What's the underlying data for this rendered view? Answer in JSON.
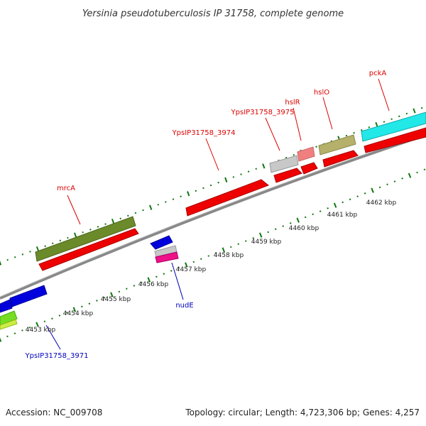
{
  "title": "Yersinia pseudotuberculosis IP 31758, complete genome",
  "footer": {
    "accession": "Accession: NC_009708",
    "summary": "Topology: circular; Length: 4,723,306 bp; Genes: 4,257"
  },
  "colors": {
    "label_forward": "#dd0000",
    "label_reverse": "#0000bb",
    "tick": "#117711",
    "backbone": "#888888"
  },
  "scale_labels": [
    "4453 kbp",
    "4454 kbp",
    "4455 kbp",
    "4456 kbp",
    "4457 kbp",
    "4458 kbp",
    "4459 kbp",
    "4460 kbp",
    "4461 kbp",
    "4462 kbp"
  ],
  "gene_labels": [
    {
      "name": "mrcA",
      "strand": "forward"
    },
    {
      "name": "YpsIP31758_3974",
      "strand": "forward"
    },
    {
      "name": "YpsIP31758_3975",
      "strand": "forward"
    },
    {
      "name": "hslR",
      "strand": "forward"
    },
    {
      "name": "hslO",
      "strand": "forward"
    },
    {
      "name": "pckA",
      "strand": "forward"
    },
    {
      "name": "nudE",
      "strand": "reverse"
    },
    {
      "name": "YpsIP31758_3971",
      "strand": "reverse"
    }
  ]
}
